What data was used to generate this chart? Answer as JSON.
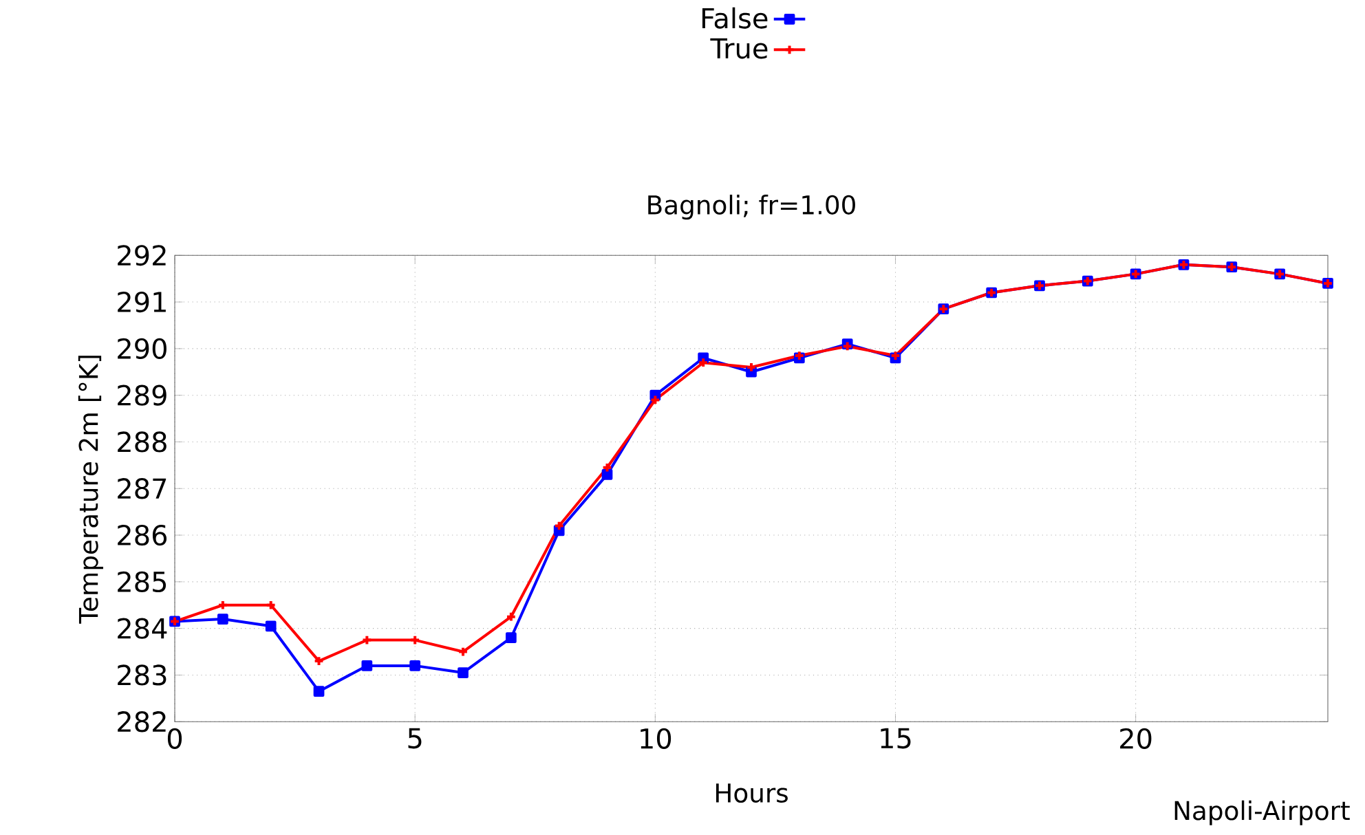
{
  "chart_data": {
    "type": "line",
    "title": "Bagnoli; fr=1.00",
    "xlabel": "Hours",
    "ylabel": "Temperature 2m [°K]",
    "x": [
      0,
      1,
      2,
      3,
      4,
      5,
      6,
      7,
      8,
      9,
      10,
      11,
      12,
      13,
      14,
      15,
      16,
      17,
      18,
      19,
      20,
      21,
      22,
      23,
      24
    ],
    "series": [
      {
        "name": "False",
        "color": "#0000ff",
        "marker": "square",
        "values": [
          284.15,
          284.2,
          284.05,
          282.65,
          283.2,
          283.2,
          283.05,
          283.8,
          286.1,
          287.3,
          289.0,
          289.8,
          289.5,
          289.8,
          290.1,
          289.8,
          290.85,
          291.2,
          291.35,
          291.45,
          291.6,
          291.8,
          291.75,
          291.6,
          291.4
        ]
      },
      {
        "name": "True",
        "color": "#ff0000",
        "marker": "cross",
        "values": [
          284.15,
          284.5,
          284.5,
          283.3,
          283.75,
          283.75,
          283.5,
          284.25,
          286.2,
          287.45,
          288.9,
          289.7,
          289.6,
          289.85,
          290.05,
          289.85,
          290.85,
          291.2,
          291.35,
          291.45,
          291.6,
          291.8,
          291.75,
          291.6,
          291.4
        ]
      }
    ],
    "xlim": [
      0,
      24
    ],
    "xticks": [
      0,
      5,
      10,
      15,
      20
    ],
    "ylim": [
      282,
      292
    ],
    "yticks": [
      282,
      283,
      284,
      285,
      286,
      287,
      288,
      289,
      290,
      291,
      292
    ],
    "grid": true,
    "legend": "top",
    "line_style": "solid",
    "annotations": [
      "Napoli-Airport"
    ]
  }
}
